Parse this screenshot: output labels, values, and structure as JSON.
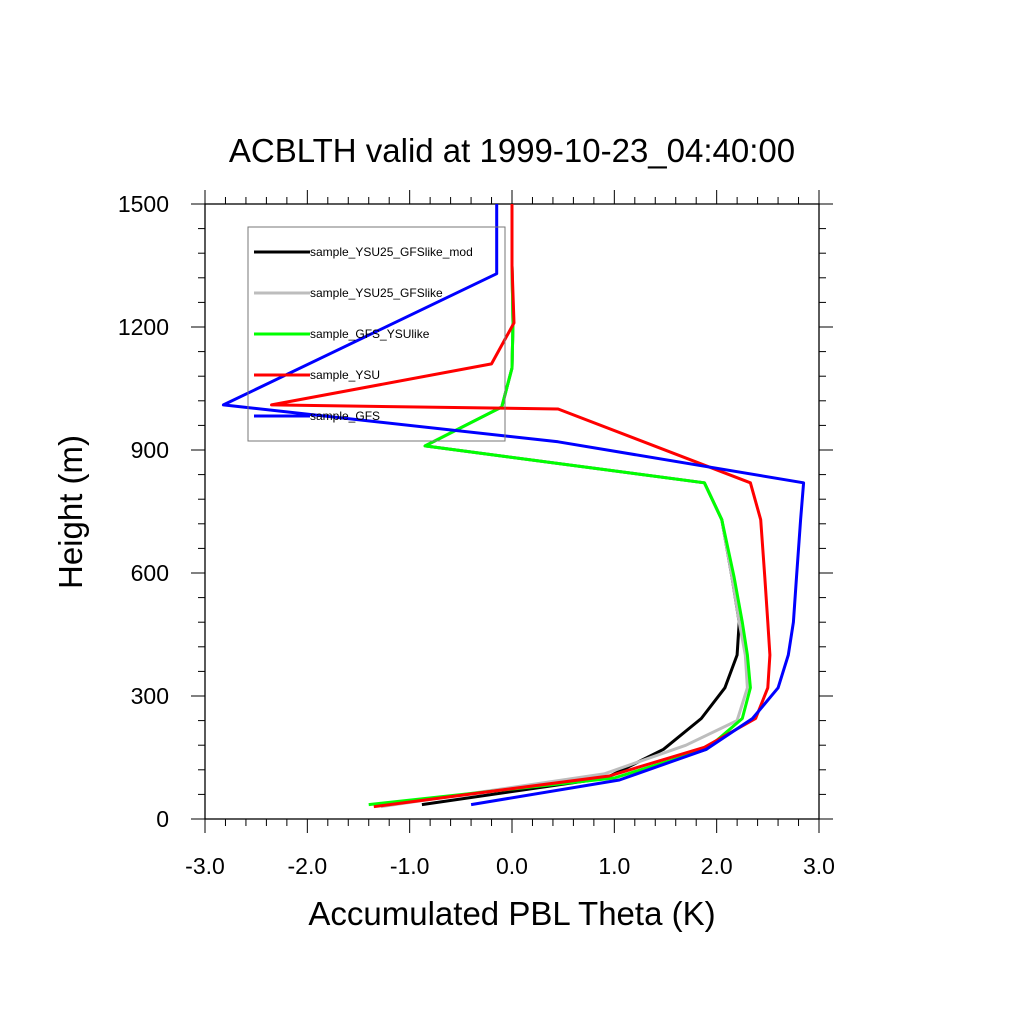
{
  "chart_data": {
    "type": "line",
    "title": "ACBLTH valid at 1999-10-23_04:40:00",
    "xlabel": "Accumulated PBL Theta (K)",
    "ylabel": "Height (m)",
    "xlim": [
      -3.0,
      3.0
    ],
    "ylim": [
      0,
      1500
    ],
    "x_ticks": [
      -3,
      -2,
      -1,
      0,
      1,
      2,
      3
    ],
    "x_tick_labels": [
      "-3.0",
      "-2.0",
      "-1.0",
      "0.0",
      "1.0",
      "2.0",
      "3.0"
    ],
    "y_ticks": [
      0,
      300,
      600,
      900,
      1200,
      1500
    ],
    "y_tick_labels": [
      "0",
      "300",
      "600",
      "900",
      "1200",
      "1500"
    ],
    "legend_position": "top-left",
    "grid": false,
    "series": [
      {
        "name": "sample_YSU25_GFSlike_mod",
        "color": "#000000",
        "points": [
          [
            -0.88,
            35
          ],
          [
            0.92,
            100
          ],
          [
            1.48,
            170
          ],
          [
            1.85,
            245
          ],
          [
            2.08,
            320
          ],
          [
            2.2,
            400
          ],
          [
            2.22,
            480
          ],
          [
            2.15,
            590
          ],
          [
            2.05,
            730
          ],
          [
            1.88,
            820
          ],
          [
            -0.85,
            910
          ],
          [
            -0.1,
            1005
          ],
          [
            0.0,
            1100
          ],
          [
            0.01,
            1210
          ],
          [
            0.0,
            1350
          ],
          [
            0.0,
            1500
          ]
        ]
      },
      {
        "name": "sample_YSU25_GFSlike",
        "color": "#bdbdbd",
        "points": [
          [
            -1.28,
            30
          ],
          [
            0.9,
            110
          ],
          [
            1.7,
            180
          ],
          [
            2.2,
            240
          ],
          [
            2.3,
            320
          ],
          [
            2.28,
            400
          ],
          [
            2.22,
            480
          ],
          [
            2.15,
            590
          ],
          [
            2.05,
            730
          ],
          [
            1.88,
            820
          ],
          [
            -0.85,
            910
          ],
          [
            -0.1,
            1005
          ],
          [
            0.0,
            1100
          ],
          [
            0.01,
            1210
          ],
          [
            0.0,
            1350
          ],
          [
            0.0,
            1500
          ]
        ]
      },
      {
        "name": "sample_GFS_YSUlike",
        "color": "#00ff00",
        "points": [
          [
            -1.4,
            35
          ],
          [
            1.0,
            100
          ],
          [
            1.9,
            170
          ],
          [
            2.25,
            245
          ],
          [
            2.33,
            320
          ],
          [
            2.3,
            400
          ],
          [
            2.25,
            480
          ],
          [
            2.17,
            590
          ],
          [
            2.05,
            730
          ],
          [
            1.88,
            820
          ],
          [
            -0.85,
            910
          ],
          [
            -0.1,
            1005
          ],
          [
            0.0,
            1100
          ],
          [
            0.01,
            1210
          ],
          [
            0.0,
            1350
          ],
          [
            0.0,
            1500
          ]
        ]
      },
      {
        "name": "sample_YSU",
        "color": "#ff0000",
        "points": [
          [
            -1.35,
            30
          ],
          [
            0.95,
            105
          ],
          [
            1.88,
            175
          ],
          [
            2.38,
            245
          ],
          [
            2.5,
            320
          ],
          [
            2.52,
            400
          ],
          [
            2.5,
            480
          ],
          [
            2.47,
            590
          ],
          [
            2.43,
            730
          ],
          [
            2.33,
            820
          ],
          [
            0.45,
            1000
          ],
          [
            -2.35,
            1010
          ],
          [
            -0.2,
            1110
          ],
          [
            0.02,
            1210
          ],
          [
            0.0,
            1350
          ],
          [
            0.0,
            1500
          ]
        ]
      },
      {
        "name": "sample_GFS",
        "color": "#0000ff",
        "points": [
          [
            -0.4,
            35
          ],
          [
            1.05,
            95
          ],
          [
            1.9,
            170
          ],
          [
            2.35,
            245
          ],
          [
            2.6,
            320
          ],
          [
            2.7,
            400
          ],
          [
            2.75,
            480
          ],
          [
            2.78,
            590
          ],
          [
            2.82,
            730
          ],
          [
            2.85,
            820
          ],
          [
            0.45,
            920
          ],
          [
            -2.82,
            1010
          ],
          [
            -0.15,
            1330
          ],
          [
            -0.15,
            1500
          ]
        ]
      }
    ]
  }
}
